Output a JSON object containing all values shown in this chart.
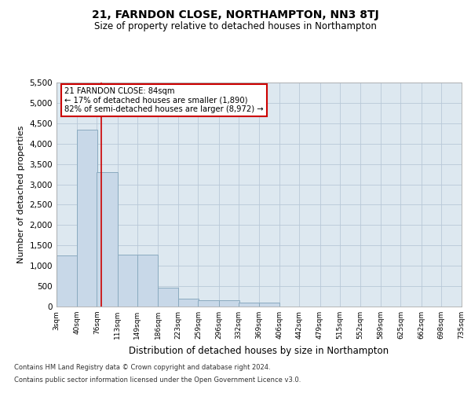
{
  "title": "21, FARNDON CLOSE, NORTHAMPTON, NN3 8TJ",
  "subtitle": "Size of property relative to detached houses in Northampton",
  "xlabel": "Distribution of detached houses by size in Northampton",
  "ylabel": "Number of detached properties",
  "footnote1": "Contains HM Land Registry data © Crown copyright and database right 2024.",
  "footnote2": "Contains public sector information licensed under the Open Government Licence v3.0.",
  "annotation_title": "21 FARNDON CLOSE: 84sqm",
  "annotation_line1": "← 17% of detached houses are smaller (1,890)",
  "annotation_line2": "82% of semi-detached houses are larger (8,972) →",
  "property_size": 84,
  "bin_starts": [
    3,
    40,
    76,
    113,
    149,
    186,
    223,
    259,
    296,
    332,
    369,
    406,
    442,
    479,
    515,
    552,
    589,
    625,
    662,
    698
  ],
  "bin_width": 37,
  "bar_heights": [
    1250,
    4350,
    3300,
    1270,
    1270,
    460,
    200,
    150,
    150,
    100,
    100,
    0,
    0,
    0,
    0,
    0,
    0,
    0,
    0,
    0
  ],
  "bar_color": "#c8d8e8",
  "bar_edge_color": "#8aaabf",
  "vline_color": "#cc0000",
  "grid_color": "#b8c8d8",
  "background_color": "#dde8f0",
  "ylim": [
    0,
    5500
  ],
  "yticks": [
    0,
    500,
    1000,
    1500,
    2000,
    2500,
    3000,
    3500,
    4000,
    4500,
    5000,
    5500
  ],
  "tick_labels": [
    "3sqm",
    "40sqm",
    "76sqm",
    "113sqm",
    "149sqm",
    "186sqm",
    "223sqm",
    "259sqm",
    "296sqm",
    "332sqm",
    "369sqm",
    "406sqm",
    "442sqm",
    "479sqm",
    "515sqm",
    "552sqm",
    "589sqm",
    "625sqm",
    "662sqm",
    "698sqm",
    "735sqm"
  ]
}
